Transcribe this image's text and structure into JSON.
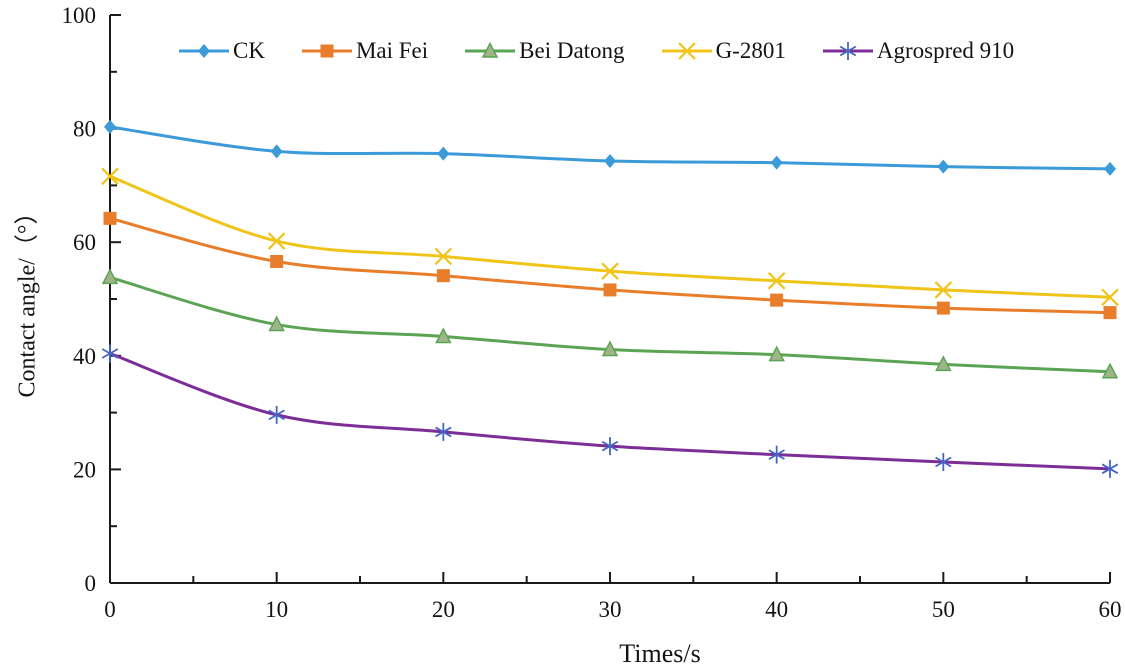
{
  "chart_data": {
    "type": "line",
    "title": "",
    "xlabel": "Times/s",
    "ylabel": "Contact angle/（°）",
    "x": [
      0,
      10,
      20,
      30,
      40,
      50,
      60
    ],
    "xlim": [
      0,
      60
    ],
    "ylim": [
      0,
      100
    ],
    "x_tick_labels": [
      "0",
      "10",
      "20",
      "30",
      "40",
      "50",
      "60"
    ],
    "y_tick_labels": [
      "0",
      "20",
      "40",
      "60",
      "80",
      "100"
    ],
    "x_major_ticks": [
      0,
      10,
      20,
      30,
      40,
      50,
      60
    ],
    "x_minor_ticks": [
      5,
      15,
      25,
      35,
      45,
      55
    ],
    "y_major_ticks": [
      0,
      20,
      40,
      60,
      80,
      100
    ],
    "y_minor_ticks": [
      10,
      30,
      50,
      70,
      90
    ],
    "grid": false,
    "legend_position": "top-inside-single-row",
    "axis_color": "#1a1a1a",
    "text_color": "#141414",
    "series": [
      {
        "name": "CK",
        "marker": "diamond",
        "line_color": "#3b9ad8",
        "marker_color": "#3b9ad8",
        "marker_stroke": "#3b9ad8",
        "values": [
          80.3,
          76.0,
          75.6,
          74.3,
          74.0,
          73.3,
          72.9
        ]
      },
      {
        "name": "Mai Fei",
        "marker": "square",
        "line_color": "#e87d2b",
        "marker_color": "#e87d2b",
        "marker_stroke": "#e87d2b",
        "values": [
          64.2,
          56.6,
          54.1,
          51.6,
          49.8,
          48.4,
          47.6
        ]
      },
      {
        "name": "Bei Datong",
        "marker": "triangle",
        "line_color": "#5ba454",
        "marker_color": "#9fb489",
        "marker_stroke": "#5ba454",
        "values": [
          53.8,
          45.5,
          43.4,
          41.1,
          40.2,
          38.5,
          37.2
        ]
      },
      {
        "name": "G-2801",
        "marker": "x",
        "line_color": "#f0c419",
        "marker_color": "#f0c419",
        "marker_stroke": "#f0c419",
        "values": [
          71.6,
          60.2,
          57.5,
          54.9,
          53.2,
          51.6,
          50.3
        ]
      },
      {
        "name": "Agrospred 910",
        "marker": "asterisk",
        "line_color": "#7c2d96",
        "marker_color": "#4565c6",
        "marker_stroke": "#4565c6",
        "values": [
          40.4,
          29.6,
          26.6,
          24.1,
          22.6,
          21.3,
          20.1
        ]
      }
    ]
  }
}
